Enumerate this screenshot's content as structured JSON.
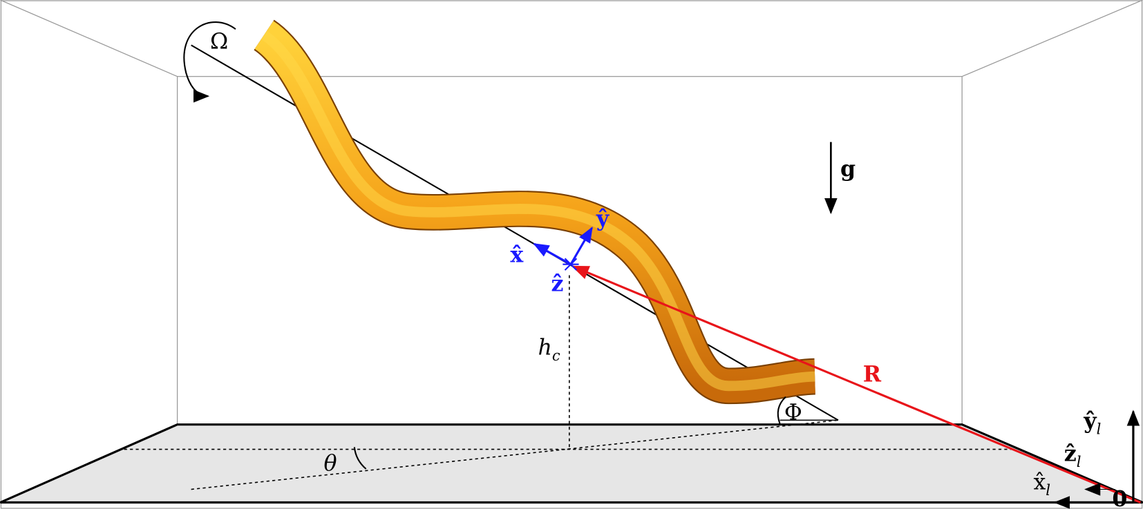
{
  "labels": {
    "omega": "Ω",
    "gravity": "g",
    "y_hat": "ŷ",
    "x_hat": "x̂",
    "z_hat": "ẑ",
    "height": {
      "text": "h",
      "sub": "c"
    },
    "r_vector": "R",
    "phi": "Φ",
    "theta": "θ",
    "y_lab": {
      "text": "ŷ",
      "sub": "l"
    },
    "z_lab": {
      "text": "ẑ",
      "sub": "l"
    },
    "x_lab": {
      "text": "x̂",
      "sub": "l"
    },
    "origin": "0"
  }
}
